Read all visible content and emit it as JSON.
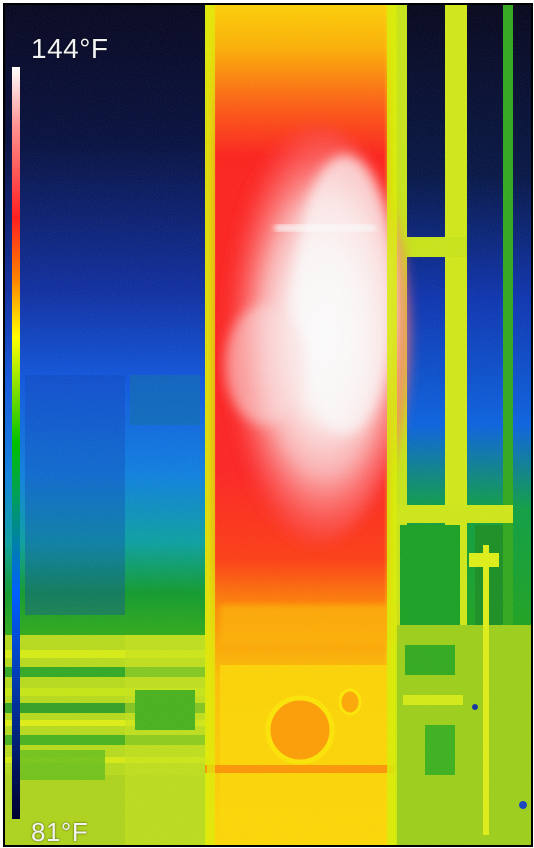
{
  "thermal_view": {
    "max_temperature": "144°F",
    "min_temperature": "81°F"
  },
  "palette": {
    "scale": [
      "#ffffff",
      "#ff8080",
      "#ff2020",
      "#ff8000",
      "#ffff00",
      "#00c000",
      "#0060ff",
      "#000030"
    ],
    "cold_background": "#000018",
    "hot_core": "#ffffff"
  },
  "icons": {
    "color_scale": "temperature-scale-bar"
  }
}
